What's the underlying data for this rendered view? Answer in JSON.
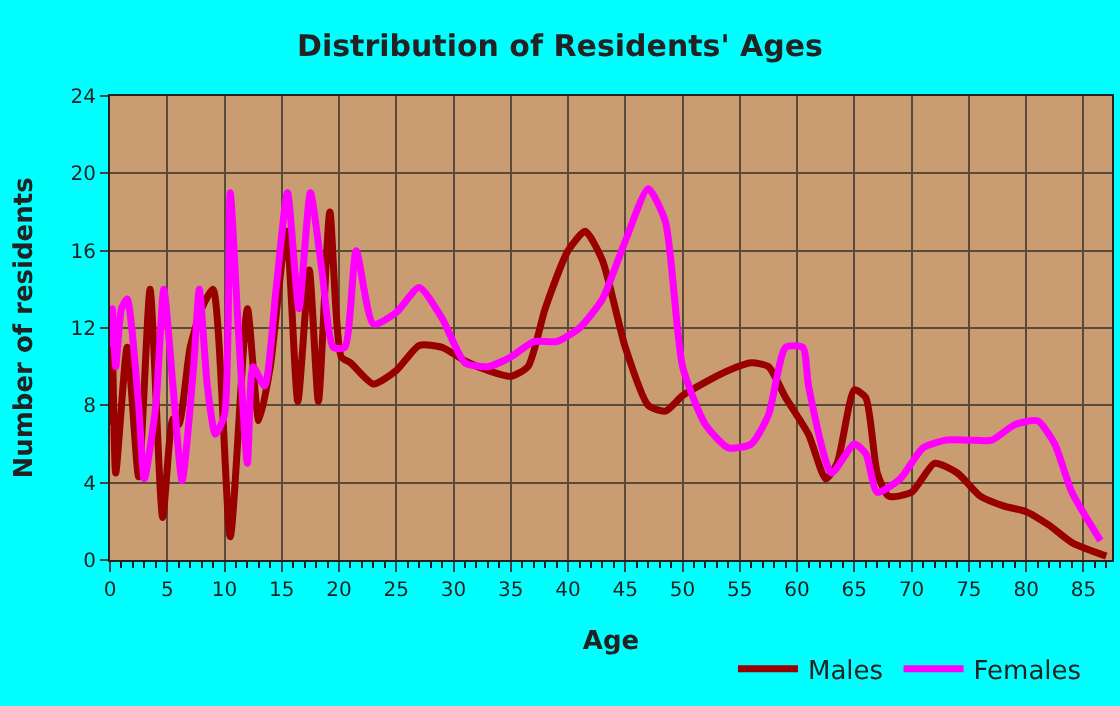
{
  "chart_data": {
    "type": "line",
    "title": "Distribution of Residents' Ages",
    "xlabel": "Age",
    "ylabel": "Number of residents",
    "xlim": [
      0,
      87.5
    ],
    "xticks": [
      0,
      5,
      10,
      15,
      20,
      25,
      30,
      35,
      40,
      45,
      50,
      55,
      60,
      65,
      70,
      75,
      80,
      85
    ],
    "ylim": [
      0,
      24
    ],
    "yticks": [
      0,
      4,
      8,
      12,
      16,
      20,
      24
    ],
    "grid": true,
    "legend": "bottom",
    "marker": "none",
    "line_style": "solid",
    "series": [
      {
        "name": "Males",
        "color": "#990000",
        "x": [
          0,
          0.2,
          0.5,
          1.5,
          2.5,
          3.5,
          4.6,
          5.5,
          6,
          7,
          8,
          9,
          10.5,
          12,
          13,
          14,
          15.4,
          16.4,
          17.4,
          18.2,
          19.2,
          20.2,
          21,
          23,
          25,
          27,
          29,
          31,
          33,
          35,
          36.5,
          38,
          40,
          41.5,
          43,
          45,
          47,
          48.5,
          50,
          52,
          54,
          56,
          57.5,
          59,
          61,
          62.5,
          63.5,
          65,
          66,
          67,
          68,
          70,
          72,
          74,
          76,
          78,
          80,
          82,
          84,
          87
        ],
        "values": [
          7,
          11,
          4.5,
          11,
          4.3,
          14,
          2.2,
          7.3,
          7,
          11,
          13,
          14,
          1.2,
          13,
          7.2,
          10,
          17,
          8.2,
          15,
          8.2,
          18,
          10.5,
          10.2,
          9.1,
          9.8,
          11.1,
          11,
          10.3,
          9.8,
          9.5,
          10,
          13,
          16,
          17,
          15.5,
          11,
          8,
          7.7,
          8.5,
          9.2,
          9.8,
          10.2,
          10,
          8.4,
          6.5,
          4.2,
          5,
          8.8,
          8.4,
          4.5,
          3.3,
          3.5,
          5,
          4.5,
          3.3,
          2.8,
          2.5,
          1.8,
          0.9,
          0.2
        ]
      },
      {
        "name": "Females",
        "color": "#ff00ff",
        "x": [
          0,
          0.2,
          0.5,
          1,
          1.5,
          2.5,
          3,
          4,
          4.7,
          5.5,
          6.3,
          7.3,
          7.8,
          8.5,
          9.2,
          10,
          10.5,
          11.2,
          12,
          12.5,
          13.5,
          14.5,
          15.5,
          16.5,
          17.5,
          18.5,
          19.5,
          20.5,
          21.5,
          23,
          25,
          27,
          29,
          31,
          33,
          35,
          37,
          39,
          41,
          43,
          45,
          47,
          48.5,
          50,
          52,
          54,
          56,
          57.5,
          59,
          60.5,
          61,
          63,
          65,
          66,
          67,
          69,
          71,
          73,
          75,
          77,
          79,
          81,
          82.5,
          84,
          86.5
        ],
        "values": [
          11,
          13,
          10,
          13,
          13.5,
          8,
          4.2,
          8,
          14,
          9,
          4.1,
          10,
          14,
          9,
          6.5,
          7.5,
          19,
          12,
          5,
          10,
          9,
          14,
          19,
          13,
          19,
          15,
          11,
          11,
          16,
          12.2,
          12.8,
          14.1,
          12.5,
          10.2,
          10,
          10.5,
          11.3,
          11.3,
          12,
          13.5,
          16.5,
          19.2,
          17.5,
          10,
          7,
          5.8,
          6,
          7.5,
          11,
          11,
          9,
          4.5,
          6,
          5.5,
          3.5,
          4.2,
          5.8,
          6.2,
          6.2,
          6.2,
          7,
          7.2,
          6,
          3.5,
          1
        ]
      }
    ]
  }
}
